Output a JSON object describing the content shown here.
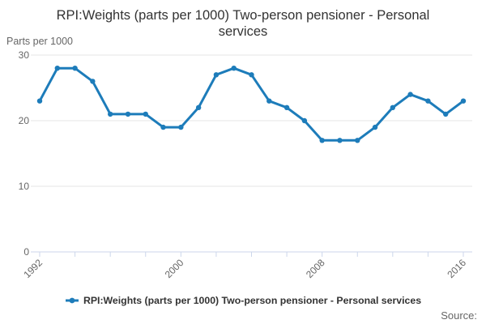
{
  "header": {
    "title": "RPI:Weights (parts per 1000) Two-person pensioner - Personal services"
  },
  "y_axis": {
    "unit_label": "Parts per 1000",
    "ticks": [
      0,
      10,
      20,
      30
    ]
  },
  "x_axis": {
    "labeled_ticks": [
      1992,
      2000,
      2008,
      2016
    ],
    "tick_interval_years": 2
  },
  "legend": {
    "label": "RPI:Weights (parts per 1000) Two-person pensioner - Personal services"
  },
  "footer": {
    "source_label": "Source:"
  },
  "colors": {
    "line": "#1d7cba",
    "grid": "#e6e6e6",
    "axis": "#ccd6eb",
    "text_muted": "#666666",
    "title_text": "#333333"
  },
  "chart_data": {
    "type": "line",
    "title": "RPI:Weights (parts per 1000) Two-person pensioner - Personal services",
    "ylabel": "Parts per 1000",
    "xlabel": "",
    "x": [
      1992,
      1993,
      1994,
      1995,
      1996,
      1997,
      1998,
      1999,
      2000,
      2001,
      2002,
      2003,
      2004,
      2005,
      2006,
      2007,
      2008,
      2009,
      2010,
      2011,
      2012,
      2013,
      2014,
      2015,
      2016
    ],
    "series": [
      {
        "name": "RPI:Weights (parts per 1000) Two-person pensioner - Personal services",
        "values": [
          23,
          28,
          28,
          26,
          21,
          21,
          21,
          19,
          19,
          22,
          27,
          28,
          27,
          23,
          22,
          20,
          17,
          17,
          17,
          19,
          22,
          24,
          23,
          21,
          23
        ]
      }
    ],
    "ylim": [
      0,
      30
    ],
    "yticks": [
      0,
      10,
      20,
      30
    ],
    "xtick_step": 2,
    "xtick_labels": [
      1992,
      2000,
      2008,
      2016
    ],
    "grid": "horizontal",
    "legend_position": "bottom",
    "line_color": "#1d7cba",
    "marker": "circle"
  }
}
